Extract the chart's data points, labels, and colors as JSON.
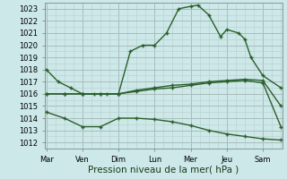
{
  "bg_color": "#cce8e8",
  "grid_major_color": "#aabcbc",
  "grid_minor_color": "#bbcccc",
  "line_color": "#2a5f2a",
  "marker_color": "#2a5f2a",
  "xlabel": "Pression niveau de la mer( hPa )",
  "xlabel_fontsize": 7.5,
  "tick_fontsize": 6,
  "xtick_labels": [
    "Mar",
    "Ven",
    "Dim",
    "Lun",
    "Mer",
    "Jeu",
    "Sam"
  ],
  "xtick_positions": [
    0,
    1,
    2,
    3,
    4,
    5,
    6
  ],
  "xlim": [
    -0.05,
    6.55
  ],
  "ylim": [
    1011.5,
    1023.5
  ],
  "ytick_min": 1012,
  "ytick_max": 1023,
  "series": [
    {
      "x": [
        0,
        0.33,
        0.67,
        1.0,
        1.33,
        1.67,
        2.0,
        2.33,
        2.67,
        3.0,
        3.33,
        3.67,
        4.0,
        4.2,
        4.5,
        4.83,
        5.0,
        5.33,
        5.5,
        5.67,
        6.0,
        6.5
      ],
      "y": [
        1018,
        1017,
        1016.5,
        1016,
        1016,
        1016,
        1016,
        1019.5,
        1020,
        1020,
        1021,
        1023,
        1023.2,
        1023.3,
        1022.5,
        1020.7,
        1021.3,
        1021,
        1020.5,
        1019,
        1017.5,
        1016.5
      ]
    },
    {
      "x": [
        0,
        0.5,
        1.0,
        1.5,
        2.0,
        2.5,
        3.0,
        3.5,
        4.0,
        4.5,
        5.0,
        5.5,
        6.0,
        6.5
      ],
      "y": [
        1016,
        1016,
        1016,
        1016,
        1016,
        1016.3,
        1016.5,
        1016.7,
        1016.8,
        1017.0,
        1017.1,
        1017.2,
        1017.1,
        1015.0
      ]
    },
    {
      "x": [
        0,
        0.5,
        1.0,
        1.5,
        2.0,
        2.5,
        3.0,
        3.5,
        4.0,
        4.5,
        5.0,
        5.5,
        6.0,
        6.5
      ],
      "y": [
        1016,
        1016,
        1016,
        1016,
        1016,
        1016.2,
        1016.4,
        1016.5,
        1016.7,
        1016.9,
        1017.0,
        1017.1,
        1016.9,
        1013.3
      ]
    },
    {
      "x": [
        0,
        0.5,
        1.0,
        1.5,
        2.0,
        2.5,
        3.0,
        3.5,
        4.0,
        4.5,
        5.0,
        5.5,
        6.0,
        6.5
      ],
      "y": [
        1014.5,
        1014,
        1013.3,
        1013.3,
        1014,
        1014,
        1013.9,
        1013.7,
        1013.4,
        1013.0,
        1012.7,
        1012.5,
        1012.3,
        1012.2
      ]
    }
  ]
}
